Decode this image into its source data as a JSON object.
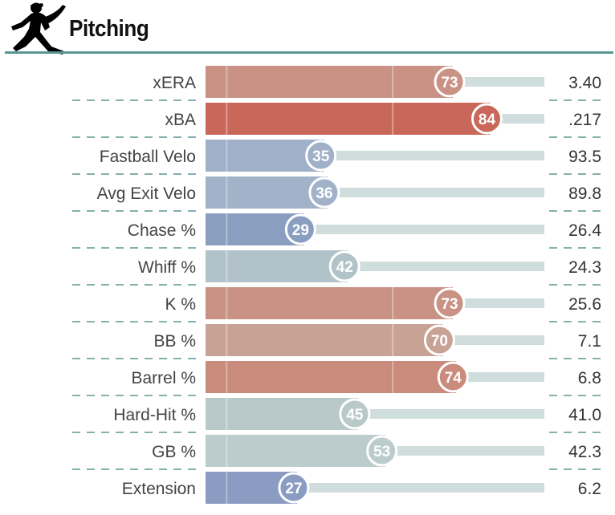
{
  "header": {
    "title": "Pitching",
    "icon": "pitcher-icon"
  },
  "chart_data": {
    "type": "bar",
    "orientation": "horizontal",
    "title": "Pitching",
    "xlim": [
      0,
      100
    ],
    "categories": [
      "xERA",
      "xBA",
      "Fastball Velo",
      "Avg Exit Velo",
      "Chase %",
      "Whiff %",
      "K %",
      "BB %",
      "Barrel %",
      "Hard-Hit %",
      "GB %",
      "Extension"
    ],
    "percentiles": [
      73,
      84,
      35,
      36,
      29,
      42,
      73,
      70,
      74,
      45,
      53,
      27
    ],
    "percentile_labels": [
      "73",
      "84",
      "35",
      "36",
      "29",
      "42",
      "73",
      "70",
      "74",
      "45",
      "53",
      "27"
    ],
    "stat_values": [
      "3.40",
      ".217",
      "93.5",
      "89.8",
      "26.4",
      "24.3",
      "25.6",
      "7.1",
      "6.8",
      "41.0",
      "42.3",
      "6.2"
    ],
    "colors": [
      "#c99285",
      "#c9685a",
      "#9fb0c8",
      "#a2b3c9",
      "#8a9ebf",
      "#b1c3c9",
      "#c99285",
      "#c9a296",
      "#c98b7b",
      "#b9c9ca",
      "#bccbcc",
      "#8a9cc2"
    ],
    "track_color": "#cfdedd",
    "divider_color": "#5b9593"
  }
}
